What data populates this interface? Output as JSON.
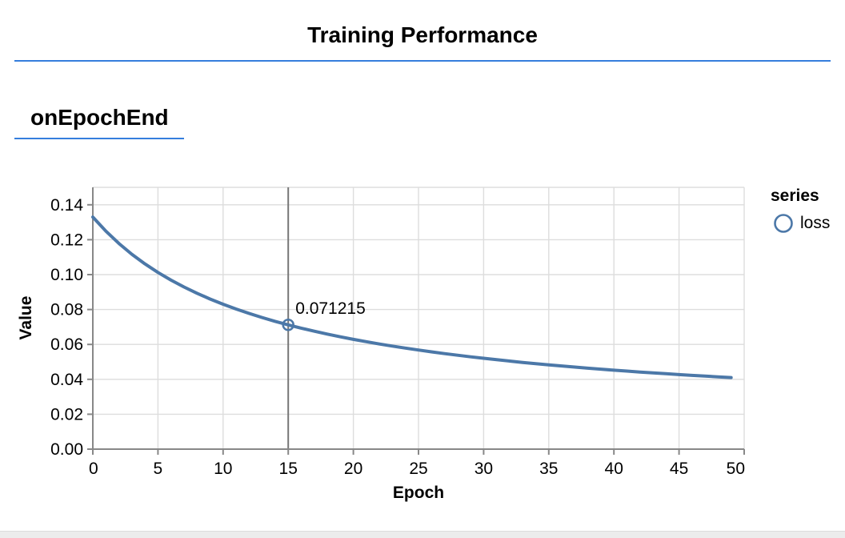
{
  "header": {
    "title": "Training Performance"
  },
  "section": {
    "label": "onEpochEnd"
  },
  "colors": {
    "accent": "#357edd",
    "line": "#4c78a8",
    "grid": "#dddddd",
    "axis": "#888888",
    "crosshair": "#777777",
    "text": "#000000",
    "footer_strip": "#ececec"
  },
  "chart_data": {
    "type": "line",
    "title": "",
    "xlabel": "Epoch",
    "ylabel": "Value",
    "xlim": [
      0,
      50
    ],
    "ylim": [
      0,
      0.15
    ],
    "x_ticks": [
      0,
      5,
      10,
      15,
      20,
      25,
      30,
      35,
      40,
      45,
      50
    ],
    "y_ticks": [
      0,
      0.02,
      0.04,
      0.06,
      0.08,
      0.1,
      0.12,
      0.14
    ],
    "grid": true,
    "legend": {
      "title": "series",
      "position": "right",
      "entries": [
        {
          "label": "loss",
          "color": "#4c78a8"
        }
      ]
    },
    "series": [
      {
        "name": "loss",
        "color": "#4c78a8",
        "x": [
          0,
          1,
          2,
          3,
          4,
          5,
          6,
          7,
          8,
          9,
          10,
          11,
          12,
          13,
          14,
          15,
          16,
          17,
          18,
          19,
          20,
          21,
          22,
          23,
          24,
          25,
          26,
          27,
          28,
          29,
          30,
          31,
          32,
          33,
          34,
          35,
          36,
          37,
          38,
          39,
          40,
          41,
          42,
          43,
          44,
          45,
          46,
          47,
          48,
          49
        ],
        "values": [
          0.132998,
          0.124891,
          0.117833,
          0.111632,
          0.106141,
          0.101244,
          0.096851,
          0.092886,
          0.089291,
          0.086016,
          0.08302,
          0.080269,
          0.077734,
          0.07539,
          0.073217,
          0.071215,
          0.069314,
          0.067554,
          0.065907,
          0.06436,
          0.062906,
          0.061537,
          0.060245,
          0.059023,
          0.057867,
          0.056771,
          0.05573,
          0.054741,
          0.0538,
          0.052903,
          0.052047,
          0.05123,
          0.050448,
          0.0497,
          0.048984,
          0.048297,
          0.047639,
          0.047006,
          0.046398,
          0.045813,
          0.045249,
          0.044707,
          0.044184,
          0.04368,
          0.043192,
          0.042722,
          0.042268,
          0.041828,
          0.041403,
          0.040992
        ]
      }
    ],
    "highlight": {
      "x": 15,
      "y": 0.071215,
      "label": "0.071215"
    }
  }
}
